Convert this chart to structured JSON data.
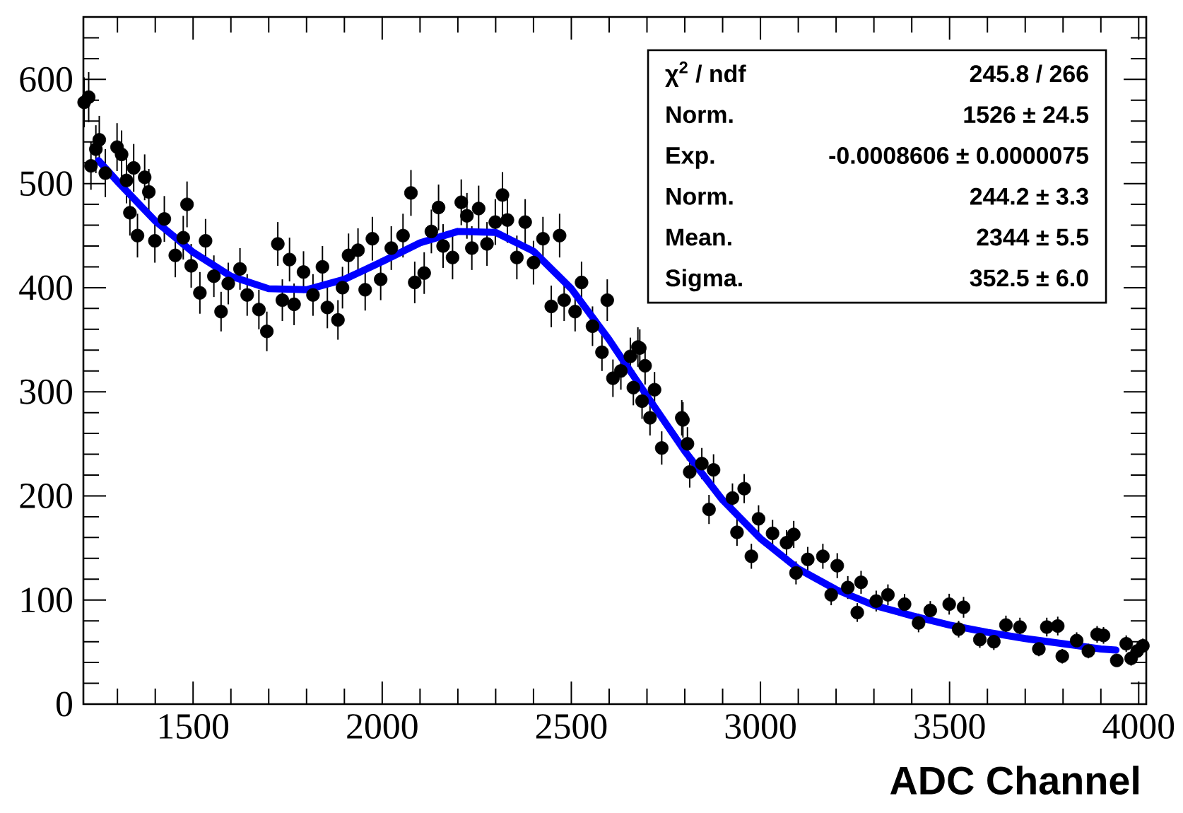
{
  "chart_data": {
    "type": "scatter",
    "xlabel": "ADC Channel",
    "xlim": [
      1210,
      4020
    ],
    "ylim": [
      0,
      660
    ],
    "xticks": [
      1500,
      2000,
      2500,
      3000,
      3500,
      4000
    ],
    "yticks": [
      0,
      100,
      200,
      300,
      400,
      500,
      600
    ],
    "annotations": [
      "χ$^{2}$ / ndf",
      "245.8 / 266",
      "Norm.",
      "1526 ± 24.5",
      "Exp.",
      "-0.0008606 ± 0.0000075",
      "Norm.",
      "244.2 ± 3.3",
      "Mean.",
      "2344 ± 5.5",
      "Sigma.",
      "352.5 ± 6.0"
    ],
    "series": [
      {
        "color": "#000000",
        "marker": "circle",
        "x": [
          1212,
          1224,
          1230,
          1243,
          1252,
          1268,
          1299,
          1311,
          1324,
          1333,
          1343,
          1353,
          1372,
          1383,
          1399,
          1424,
          1453,
          1474,
          1484,
          1495,
          1518,
          1533,
          1555,
          1574,
          1593,
          1624,
          1643,
          1674,
          1695,
          1724,
          1736,
          1755,
          1767,
          1792,
          1817,
          1842,
          1855,
          1883,
          1895,
          1911,
          1936,
          1955,
          1974,
          1996,
          2024,
          2055,
          2076,
          2086,
          2111,
          2130,
          2149,
          2161,
          2186,
          2209,
          2224,
          2237,
          2255,
          2277,
          2299,
          2318,
          2331,
          2356,
          2378,
          2400,
          2425,
          2447,
          2469,
          2481,
          2510,
          2527,
          2556,
          2581,
          2595,
          2610,
          2631,
          2656,
          2664,
          2676,
          2681,
          2687,
          2695,
          2708,
          2720,
          2739,
          2792,
          2795,
          2807,
          2813,
          2845,
          2864,
          2876,
          2926,
          2938,
          2957,
          2976,
          2995,
          3032,
          3069,
          3088,
          3094,
          3125,
          3165,
          3187,
          3203,
          3231,
          3256,
          3266,
          3306,
          3337,
          3381,
          3418,
          3449,
          3499,
          3524,
          3537,
          3580,
          3617,
          3649,
          3686,
          3736,
          3757,
          3786,
          3798,
          3836,
          3867,
          3890,
          3907,
          3942,
          3967,
          3980,
          3996,
          4011
        ],
        "values": [
          578,
          583,
          517,
          533,
          542,
          510,
          535,
          528,
          503,
          472,
          515,
          450,
          506,
          492,
          445,
          466,
          431,
          448,
          480,
          421,
          395,
          445,
          411,
          377,
          404,
          418,
          393,
          379,
          358,
          442,
          388,
          427,
          384,
          415,
          393,
          420,
          381,
          369,
          400,
          431,
          436,
          398,
          447,
          408,
          438,
          450,
          491,
          405,
          414,
          454,
          477,
          440,
          429,
          482,
          469,
          438,
          476,
          442,
          463,
          489,
          465,
          429,
          463,
          424,
          447,
          382,
          450,
          388,
          377,
          405,
          363,
          338,
          388,
          313,
          320,
          334,
          304,
          343,
          342,
          291,
          325,
          275,
          302,
          246,
          275,
          273,
          250,
          223,
          231,
          187,
          225,
          198,
          165,
          207,
          142,
          178,
          164,
          155,
          163,
          126,
          139,
          142,
          105,
          133,
          112,
          88,
          117,
          99,
          105,
          96,
          78,
          90,
          96,
          72,
          93,
          62,
          60,
          76,
          74,
          53,
          74,
          75,
          46,
          61,
          51,
          67,
          66,
          42,
          58,
          44,
          51,
          56
        ],
        "errors": [
          24,
          24,
          23,
          23,
          23,
          23,
          23,
          23,
          22,
          22,
          23,
          21,
          22,
          22,
          21,
          22,
          21,
          21,
          22,
          21,
          20,
          21,
          20,
          19,
          20,
          20,
          20,
          19,
          19,
          21,
          20,
          21,
          20,
          20,
          20,
          20,
          20,
          19,
          20,
          21,
          21,
          20,
          21,
          20,
          21,
          21,
          22,
          20,
          20,
          21,
          22,
          21,
          21,
          22,
          22,
          21,
          22,
          21,
          22,
          22,
          22,
          21,
          22,
          21,
          21,
          20,
          21,
          20,
          19,
          20,
          19,
          18,
          20,
          18,
          18,
          18,
          17,
          19,
          18,
          17,
          18,
          17,
          17,
          16,
          17,
          17,
          16,
          15,
          15,
          14,
          15,
          14,
          13,
          14,
          12,
          13,
          13,
          12,
          13,
          11,
          12,
          12,
          10,
          12,
          11,
          9,
          11,
          10,
          10,
          10,
          9,
          9,
          10,
          8,
          10,
          8,
          8,
          9,
          9,
          7,
          9,
          9,
          7,
          8,
          7,
          8,
          8,
          6,
          8,
          7,
          7,
          7
        ]
      },
      {
        "type": "line",
        "color": "#0000ff",
        "marker": "none",
        "line_style": "solid",
        "x": [
          1250,
          1300,
          1400,
          1500,
          1600,
          1700,
          1800,
          1900,
          2000,
          2100,
          2200,
          2300,
          2400,
          2500,
          2600,
          2700,
          2800,
          2900,
          3000,
          3100,
          3200,
          3300,
          3400,
          3500,
          3600,
          3700,
          3800,
          3900,
          3940
        ],
        "values": [
          522,
          502,
          464,
          434,
          411,
          399,
          398,
          408,
          425,
          443,
          454,
          453,
          435,
          399,
          350,
          296,
          243,
          196,
          159,
          130,
          110,
          95,
          85,
          76,
          69,
          63,
          58,
          53,
          52
        ]
      }
    ]
  }
}
